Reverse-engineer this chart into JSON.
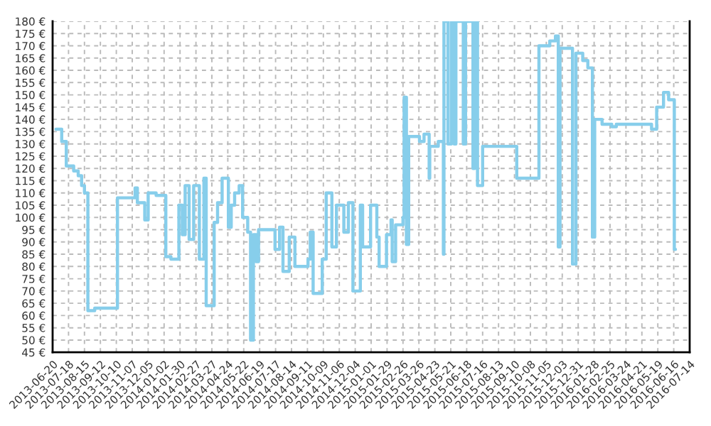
{
  "chart_data": {
    "type": "step",
    "x": [
      "2013-06-26",
      "2013-07-06",
      "2013-07-14",
      "2013-07-27",
      "2013-08-04",
      "2013-08-10",
      "2013-08-15",
      "2013-08-21",
      "2013-09-02",
      "2013-10-12",
      "2013-11-12",
      "2013-11-16",
      "2013-11-29",
      "2013-12-05",
      "2013-12-19",
      "2014-01-05",
      "2014-01-14",
      "2014-01-28",
      "2014-02-03",
      "2014-02-08",
      "2014-02-15",
      "2014-02-23",
      "2014-03-05",
      "2014-03-13",
      "2014-03-17",
      "2014-03-31",
      "2014-04-06",
      "2014-04-14",
      "2014-04-25",
      "2014-04-30",
      "2014-05-06",
      "2014-05-14",
      "2014-05-20",
      "2014-05-29",
      "2014-06-03",
      "2014-06-08",
      "2014-06-13",
      "2014-06-17",
      "2014-07-16",
      "2014-07-24",
      "2014-07-30",
      "2014-08-10",
      "2014-08-20",
      "2014-09-12",
      "2014-09-16",
      "2014-09-21",
      "2014-10-07",
      "2014-10-14",
      "2014-10-24",
      "2014-11-01",
      "2014-11-14",
      "2014-11-22",
      "2014-11-30",
      "2014-12-13",
      "2014-12-17",
      "2014-12-31",
      "2015-01-11",
      "2015-01-15",
      "2015-01-28",
      "2015-02-05",
      "2015-02-07",
      "2015-02-13",
      "2015-02-26",
      "2015-02-28",
      "2015-03-04",
      "2015-03-08",
      "2015-03-27",
      "2015-04-04",
      "2015-04-13",
      "2015-04-14",
      "2015-04-29",
      "2015-05-08",
      "2015-05-09",
      "2015-05-16",
      "2015-05-22",
      "2015-05-27",
      "2015-05-30",
      "2015-06-12",
      "2015-06-16",
      "2015-06-29",
      "2015-07-02",
      "2015-07-07",
      "2015-07-16",
      "2015-09-14",
      "2015-10-23",
      "2015-11-11",
      "2015-11-21",
      "2015-11-26",
      "2015-11-29",
      "2015-12-21",
      "2015-12-27",
      "2016-01-08",
      "2016-01-17",
      "2016-01-25",
      "2016-01-29",
      "2016-02-11",
      "2016-02-28",
      "2016-03-07",
      "2016-05-08",
      "2016-05-17",
      "2016-05-29",
      "2016-06-07",
      "2016-06-17",
      "2016-06-19"
    ],
    "series": [
      {
        "color": "#87ceeb",
        "values": [
          136,
          131,
          121,
          119,
          117,
          113,
          110,
          62,
          63,
          108,
          112,
          106,
          99,
          110,
          109,
          84,
          83,
          105,
          93,
          113,
          91,
          113,
          83,
          116,
          64,
          98,
          106,
          116,
          96,
          105,
          110,
          113,
          100,
          94,
          50,
          93,
          82,
          95,
          87,
          96,
          78,
          92,
          80,
          83,
          94,
          69,
          83,
          110,
          88,
          105,
          94,
          106,
          70,
          105,
          88,
          105,
          92,
          80,
          93,
          99,
          82,
          97,
          100,
          149,
          89,
          133,
          131,
          134,
          116,
          129,
          131,
          85,
          180,
          130,
          180,
          130,
          180,
          130,
          180,
          120,
          180,
          113,
          129,
          116,
          170,
          172,
          174,
          88,
          169,
          81,
          167,
          164,
          161,
          92,
          140,
          138,
          137,
          138,
          136,
          145,
          151,
          148,
          87,
          87
        ]
      }
    ],
    "xlim": [
      "2013-06-20",
      "2016-07-14"
    ],
    "xticks": [
      "2013-06-20",
      "2013-07-18",
      "2013-08-15",
      "2013-09-12",
      "2013-10-10",
      "2013-11-07",
      "2013-12-05",
      "2014-01-02",
      "2014-01-30",
      "2014-02-27",
      "2014-03-27",
      "2014-04-24",
      "2014-05-22",
      "2014-06-19",
      "2014-07-17",
      "2014-08-14",
      "2014-09-11",
      "2014-10-09",
      "2014-11-06",
      "2014-12-04",
      "2015-01-01",
      "2015-01-29",
      "2015-02-26",
      "2015-03-26",
      "2015-04-23",
      "2015-05-21",
      "2015-06-18",
      "2015-07-16",
      "2015-08-13",
      "2015-09-10",
      "2015-10-08",
      "2015-11-05",
      "2015-12-03",
      "2015-12-31",
      "2016-01-28",
      "2016-02-25",
      "2016-03-24",
      "2016-04-21",
      "2016-05-19",
      "2016-06-16",
      "2016-07-14"
    ],
    "ylim": [
      45,
      180
    ],
    "yticks": [
      {
        "value": 45,
        "label": "45 €"
      },
      {
        "value": 50,
        "label": "50 €"
      },
      {
        "value": 55,
        "label": "55 €"
      },
      {
        "value": 60,
        "label": "60 €"
      },
      {
        "value": 65,
        "label": "65 €"
      },
      {
        "value": 70,
        "label": "70 €"
      },
      {
        "value": 75,
        "label": "75 €"
      },
      {
        "value": 80,
        "label": "80 €"
      },
      {
        "value": 85,
        "label": "85 €"
      },
      {
        "value": 90,
        "label": "90 €"
      },
      {
        "value": 95,
        "label": "95 €"
      },
      {
        "value": 100,
        "label": "100 €"
      },
      {
        "value": 105,
        "label": "105 €"
      },
      {
        "value": 110,
        "label": "110 €"
      },
      {
        "value": 115,
        "label": "115 €"
      },
      {
        "value": 120,
        "label": "120 €"
      },
      {
        "value": 125,
        "label": "125 €"
      },
      {
        "value": 130,
        "label": "130 €"
      },
      {
        "value": 135,
        "label": "135 €"
      },
      {
        "value": 140,
        "label": "140 €"
      },
      {
        "value": 145,
        "label": "145 €"
      },
      {
        "value": 150,
        "label": "150 €"
      },
      {
        "value": 155,
        "label": "155 €"
      },
      {
        "value": 160,
        "label": "160 €"
      },
      {
        "value": 165,
        "label": "165 €"
      },
      {
        "value": 170,
        "label": "170 €"
      },
      {
        "value": 175,
        "label": "175 €"
      },
      {
        "value": 180,
        "label": "180 €"
      }
    ],
    "grid": true,
    "legend": false
  }
}
